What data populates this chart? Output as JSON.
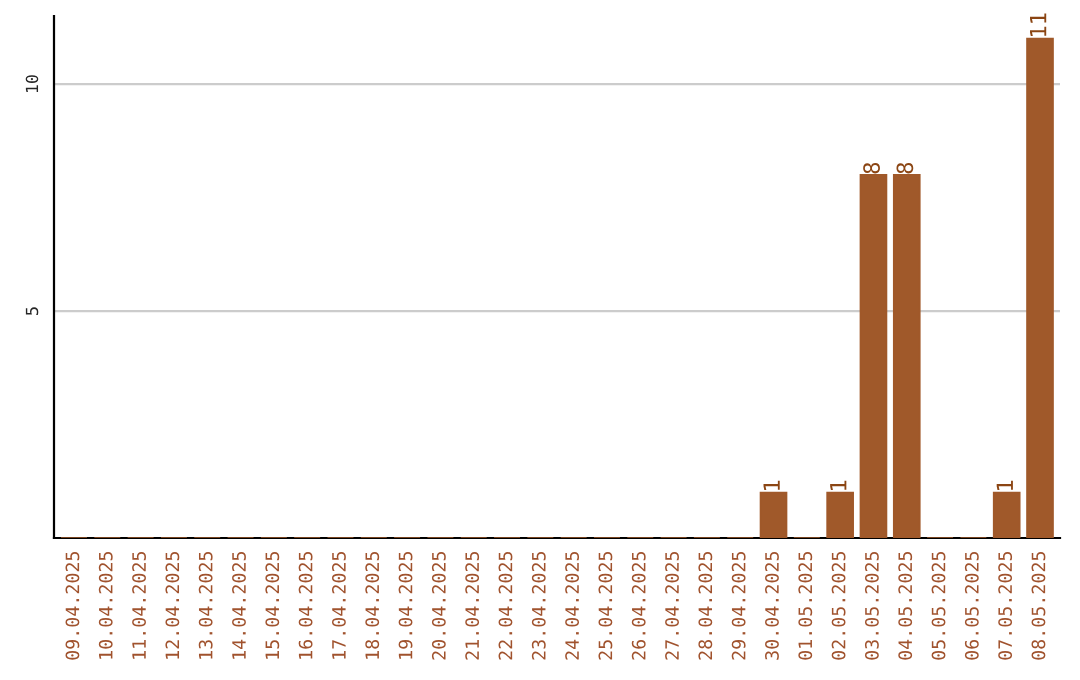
{
  "chart_data": {
    "type": "bar",
    "categories": [
      "09.04.2025",
      "10.04.2025",
      "11.04.2025",
      "12.04.2025",
      "13.04.2025",
      "14.04.2025",
      "15.04.2025",
      "16.04.2025",
      "17.04.2025",
      "18.04.2025",
      "19.04.2025",
      "20.04.2025",
      "21.04.2025",
      "22.04.2025",
      "23.04.2025",
      "24.04.2025",
      "25.04.2025",
      "26.04.2025",
      "27.04.2025",
      "28.04.2025",
      "29.04.2025",
      "30.04.2025",
      "01.05.2025",
      "02.05.2025",
      "03.05.2025",
      "04.05.2025",
      "05.05.2025",
      "06.05.2025",
      "07.05.2025",
      "08.05.2025"
    ],
    "values": [
      0,
      0,
      0,
      0,
      0,
      0,
      0,
      0,
      0,
      0,
      0,
      0,
      0,
      0,
      0,
      0,
      0,
      0,
      0,
      0,
      0,
      1,
      0,
      1,
      8,
      8,
      0,
      0,
      1,
      11
    ],
    "value_labels": [
      null,
      null,
      null,
      null,
      null,
      null,
      null,
      null,
      null,
      null,
      null,
      null,
      null,
      null,
      null,
      null,
      null,
      null,
      null,
      null,
      null,
      "1",
      null,
      "1",
      "8",
      "8",
      null,
      null,
      "1",
      "11"
    ],
    "color": "#a0592a",
    "ylim": [
      0,
      11.5
    ],
    "yticks": [
      5,
      10
    ],
    "grid": "y"
  }
}
